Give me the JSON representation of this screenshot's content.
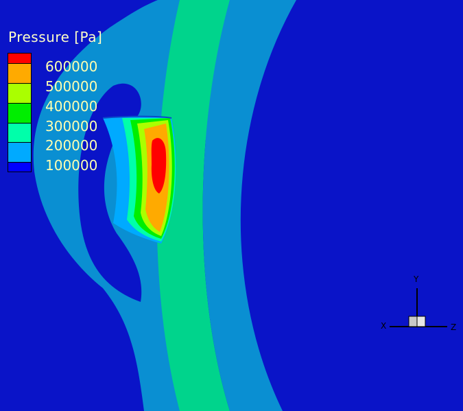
{
  "legend": {
    "title": "Pressure [Pa]",
    "labels": [
      "600000",
      "500000",
      "400000",
      "300000",
      "200000",
      "100000"
    ],
    "colors": [
      "#ff0000",
      "#ffaa00",
      "#aaff00",
      "#00ee00",
      "#00ffaa",
      "#00aaff",
      "#0000ff"
    ]
  },
  "axes": {
    "x": "X",
    "y": "Y",
    "z": "Z"
  },
  "colors": {
    "background": "#0a14c8",
    "band_light_blue": "#0a8fd2",
    "band_green": "#00d48c"
  }
}
